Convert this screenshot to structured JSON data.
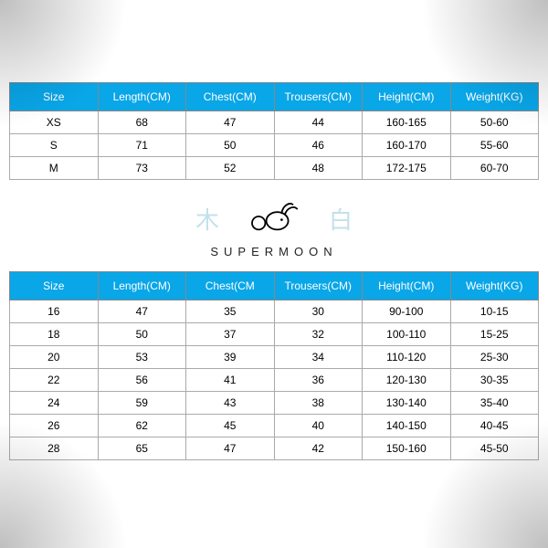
{
  "colors": {
    "header_bg": "#09a6e8",
    "header_text": "#ffffff",
    "cell_text": "#000000",
    "border": "#aaaaaa",
    "background": "#ffffff",
    "cjk_char": "#b8dce8",
    "brand_text": "#222222"
  },
  "typography": {
    "header_fontsize": 12,
    "cell_fontsize": 12,
    "brand_fontsize": 13,
    "brand_letterspacing": 6
  },
  "adult_table": {
    "type": "table",
    "columns": [
      "Size",
      "Length(CM)",
      "Chest(CM)",
      "Trousers(CM)",
      "Height(CM)",
      "Weight(KG)"
    ],
    "rows": [
      [
        "XS",
        "68",
        "47",
        "44",
        "160-165",
        "50-60"
      ],
      [
        "S",
        "71",
        "50",
        "46",
        "160-170",
        "55-60"
      ],
      [
        "M",
        "73",
        "52",
        "48",
        "172-175",
        "60-70"
      ]
    ]
  },
  "logo": {
    "left_char": "木",
    "right_char": "白",
    "brand": "SUPERMOON"
  },
  "kids_table": {
    "type": "table",
    "columns": [
      "Size",
      "Length(CM)",
      "Chest(CM",
      "Trousers(CM)",
      "Height(CM)",
      "Weight(KG)"
    ],
    "rows": [
      [
        "16",
        "47",
        "35",
        "30",
        "90-100",
        "10-15"
      ],
      [
        "18",
        "50",
        "37",
        "32",
        "100-110",
        "15-25"
      ],
      [
        "20",
        "53",
        "39",
        "34",
        "110-120",
        "25-30"
      ],
      [
        "22",
        "56",
        "41",
        "36",
        "120-130",
        "30-35"
      ],
      [
        "24",
        "59",
        "43",
        "38",
        "130-140",
        "35-40"
      ],
      [
        "26",
        "62",
        "45",
        "40",
        "140-150",
        "40-45"
      ],
      [
        "28",
        "65",
        "47",
        "42",
        "150-160",
        "45-50"
      ]
    ]
  }
}
